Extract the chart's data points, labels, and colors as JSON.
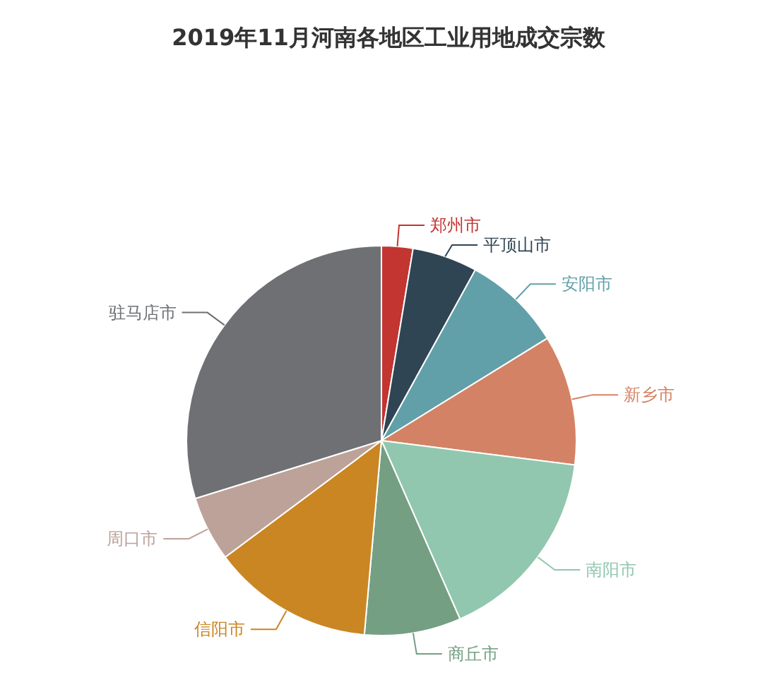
{
  "chart_data": {
    "type": "pie",
    "title": "2019年11月河南各地区工业用地成交宗数",
    "categories": [
      "郑州市",
      "平顶山市",
      "安阳市",
      "新乡市",
      "南阳市",
      "商丘市",
      "信阳市",
      "周口市",
      "驻马店市"
    ],
    "values": [
      2.6,
      5.4,
      8.2,
      10.8,
      16.4,
      8.0,
      13.4,
      5.4,
      29.8
    ],
    "colors": [
      "#c23531",
      "#2f4554",
      "#61a0a8",
      "#d48265",
      "#91c7ae",
      "#749f83",
      "#ca8622",
      "#bda29a",
      "#6e7074"
    ]
  }
}
